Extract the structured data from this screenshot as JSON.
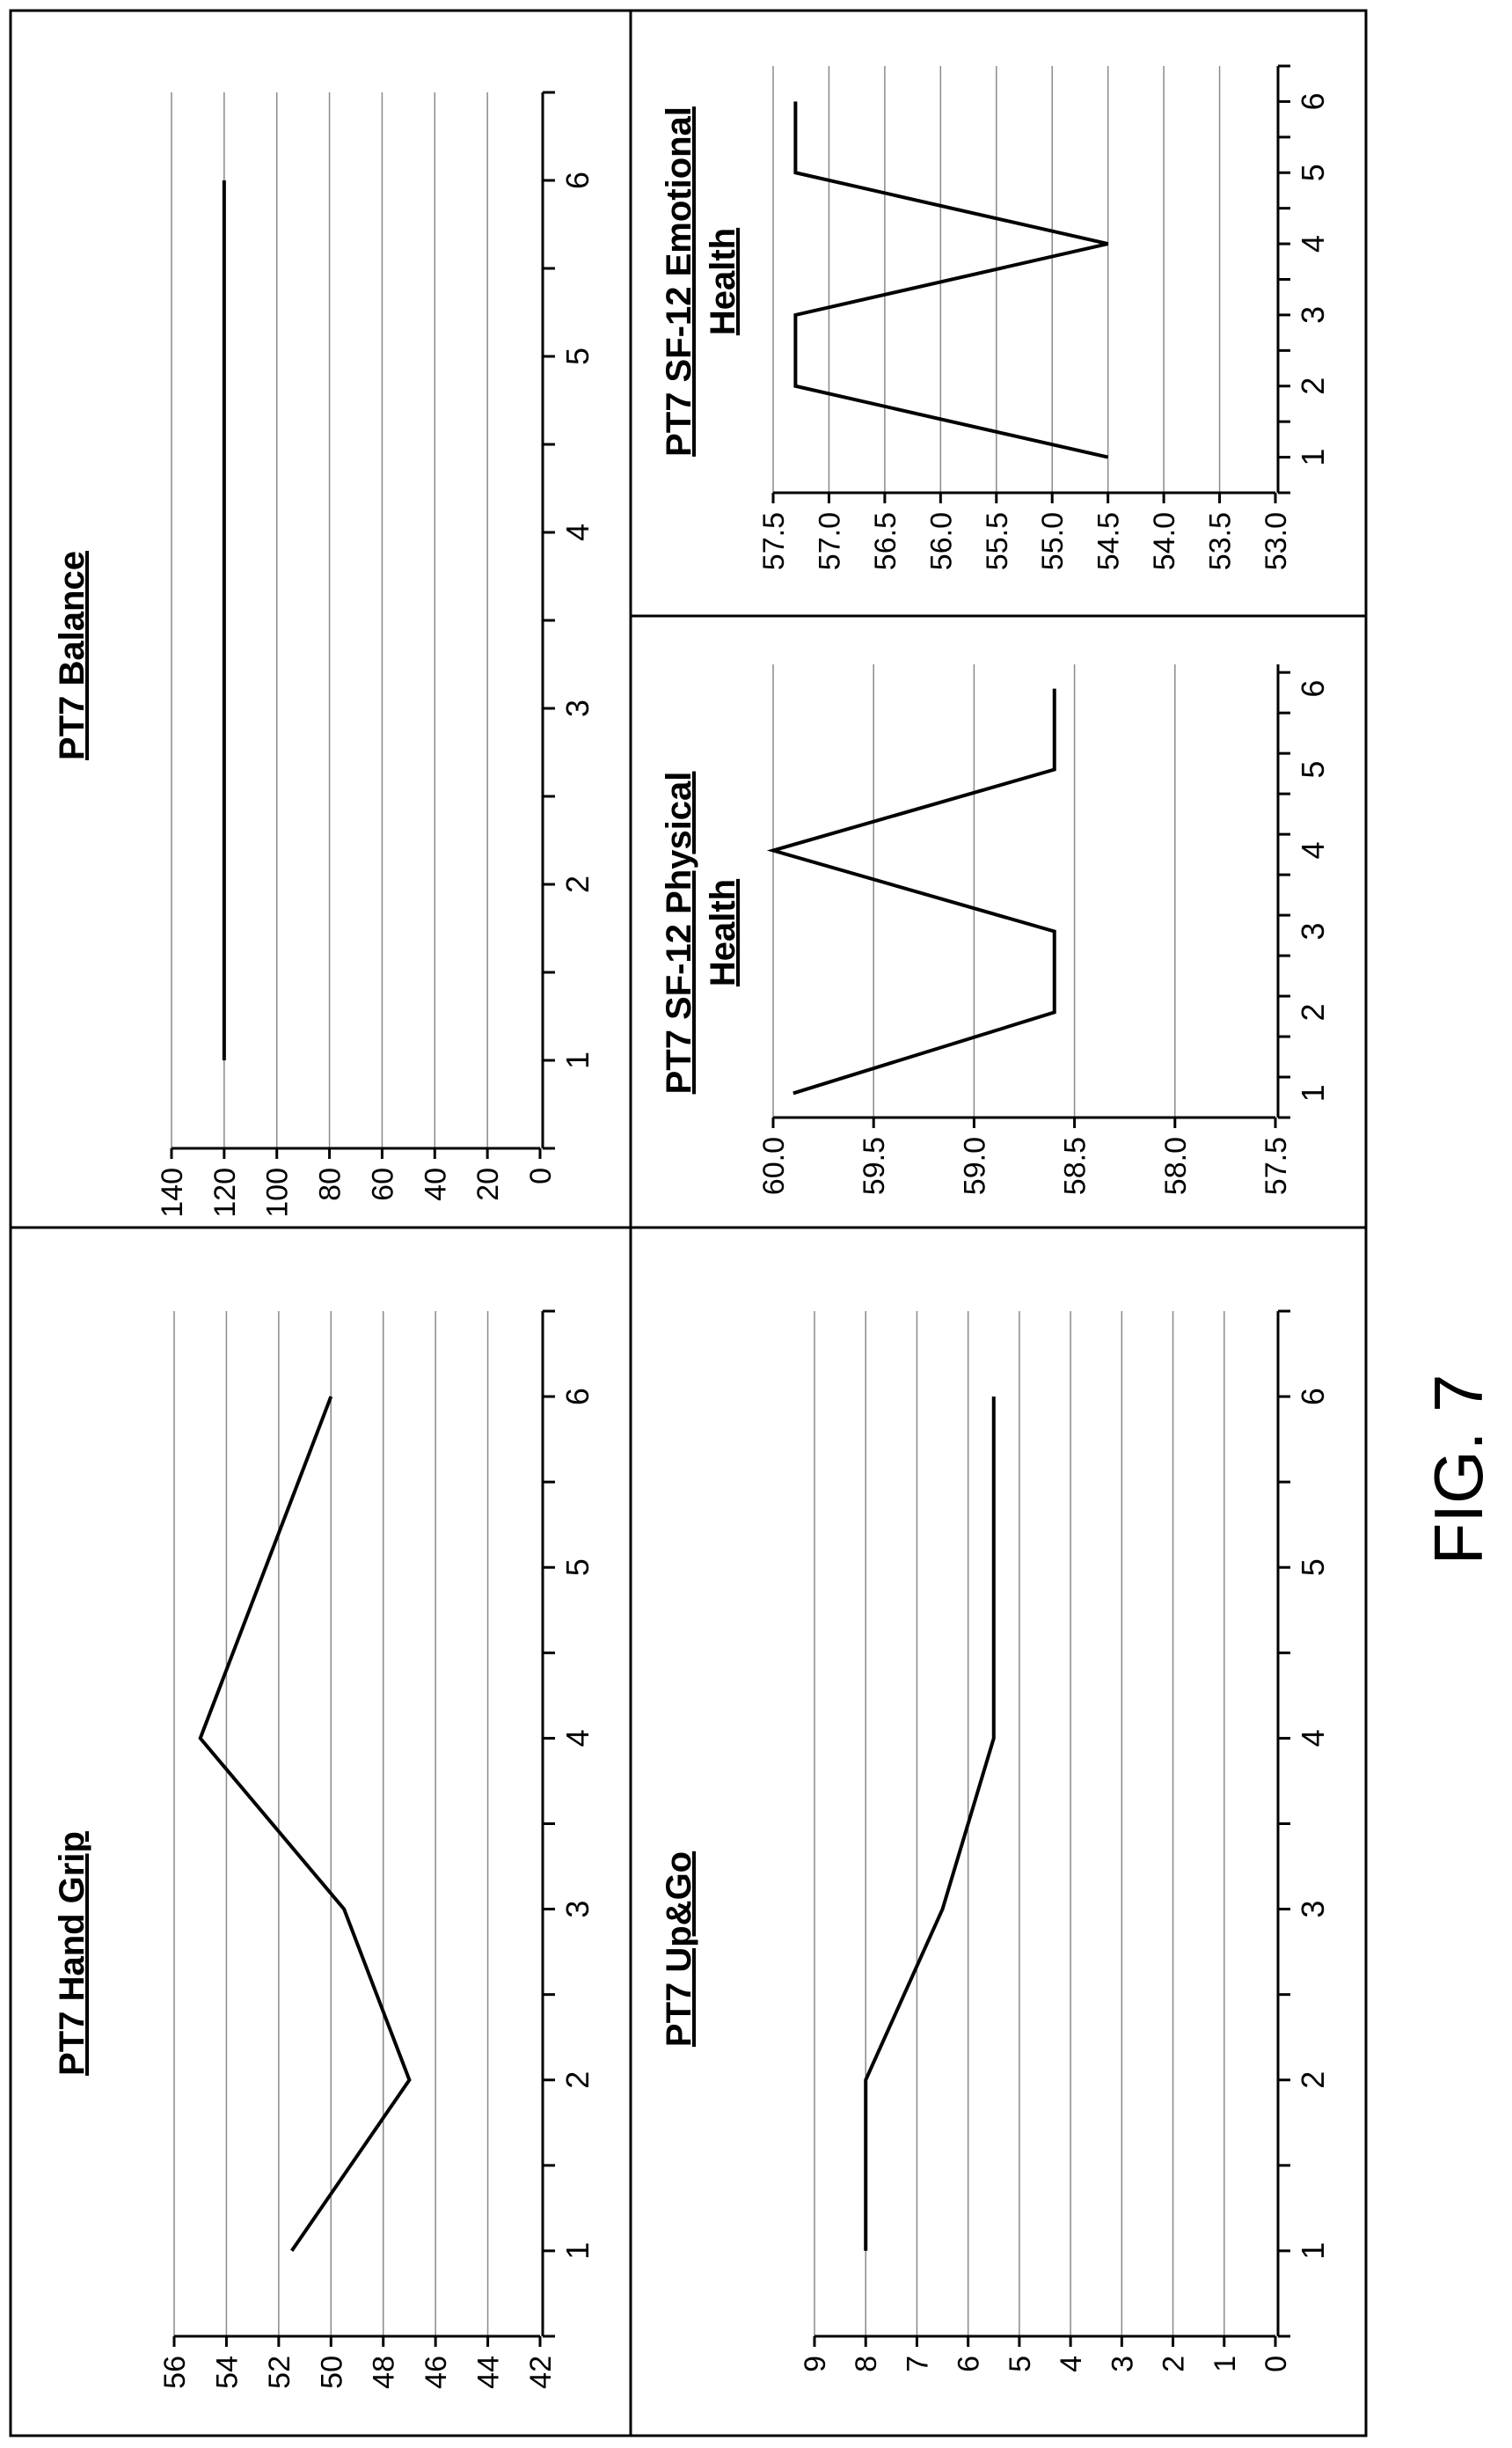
{
  "figure_label": "FIG. 7",
  "chart_data": [
    {
      "type": "line",
      "title": "PT7 Hand Grip",
      "x": [
        1,
        2,
        3,
        4,
        5,
        6
      ],
      "values": [
        51.5,
        47,
        49.5,
        55,
        52.5,
        50
      ],
      "xlim": [
        0.5,
        6.5
      ],
      "ylim": [
        42,
        56
      ],
      "yticks": [
        "42",
        "44",
        "46",
        "48",
        "50",
        "52",
        "54",
        "56"
      ],
      "xticks": [
        "1",
        "2",
        "3",
        "4",
        "5",
        "6"
      ],
      "grid": true
    },
    {
      "type": "line",
      "title": "PT7 Balance",
      "x": [
        1,
        2,
        3,
        4,
        5,
        6
      ],
      "values": [
        120,
        120,
        120,
        120,
        120,
        120
      ],
      "xlim": [
        0.5,
        6.5
      ],
      "ylim": [
        0,
        140
      ],
      "yticks": [
        "0",
        "20",
        "40",
        "60",
        "80",
        "100",
        "120",
        "140"
      ],
      "xticks": [
        "1",
        "2",
        "3",
        "4",
        "5",
        "6"
      ],
      "grid": true
    },
    {
      "type": "line",
      "title": "PT7 Up&Go",
      "x": [
        1,
        2,
        3,
        4,
        5,
        6
      ],
      "values": [
        8,
        8,
        6.5,
        5.5,
        5.5,
        5.5
      ],
      "xlim": [
        0.5,
        6.5
      ],
      "ylim": [
        0,
        9
      ],
      "yticks": [
        "0",
        "1",
        "2",
        "3",
        "4",
        "5",
        "6",
        "7",
        "8",
        "9"
      ],
      "xticks": [
        "1",
        "2",
        "3",
        "4",
        "5",
        "6"
      ],
      "grid": true
    },
    {
      "type": "line",
      "title": "PT7 SF-12 Physical Health",
      "title_lines": [
        "PT7 SF-12 Physical",
        "Health"
      ],
      "x": [
        1,
        2,
        3,
        4,
        5,
        6
      ],
      "values": [
        59.9,
        58.6,
        58.6,
        60.0,
        58.6,
        58.6
      ],
      "xlim": [
        0.7,
        6.3
      ],
      "ylim": [
        57.5,
        60.0
      ],
      "yticks": [
        "57.5",
        "58.0",
        "58.5",
        "59.0",
        "59.5",
        "60.0"
      ],
      "xticks": [
        "1",
        "2",
        "3",
        "4",
        "5",
        "6"
      ],
      "grid": true
    },
    {
      "type": "line",
      "title": "PT7 SF-12 Emotional Health",
      "title_lines": [
        "PT7 SF-12 Emotional",
        "Health"
      ],
      "x": [
        1,
        2,
        3,
        4,
        5,
        6
      ],
      "values": [
        54.5,
        57.3,
        57.3,
        54.5,
        57.3,
        57.3
      ],
      "xlim": [
        0.5,
        6.5
      ],
      "ylim": [
        53.0,
        57.5
      ],
      "yticks": [
        "53.0",
        "53.5",
        "54.0",
        "54.5",
        "55.0",
        "55.5",
        "56.0",
        "56.5",
        "57.0",
        "57.5"
      ],
      "xticks": [
        "1",
        "2",
        "3",
        "4",
        "5",
        "6"
      ],
      "grid": true
    }
  ]
}
